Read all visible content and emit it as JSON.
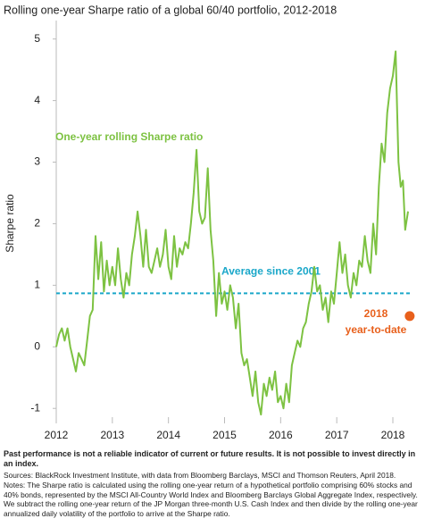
{
  "chart_data": {
    "type": "line",
    "title": "Rolling one-year Sharpe ratio of a global 60/40 portfolio, 2012-2018",
    "y_label": "Sharpe ratio",
    "xlim": [
      2012,
      2018.35
    ],
    "xticks": [
      2012,
      2013,
      2014,
      2015,
      2016,
      2017,
      2018
    ],
    "ylim": [
      -1.2,
      5.3
    ],
    "yticks": [
      -1,
      0,
      1,
      2,
      3,
      4,
      5
    ],
    "x": [
      2012.0,
      2012.05,
      2012.1,
      2012.15,
      2012.2,
      2012.25,
      2012.3,
      2012.35,
      2012.4,
      2012.45,
      2012.5,
      2012.55,
      2012.6,
      2012.65,
      2012.7,
      2012.75,
      2012.8,
      2012.85,
      2012.9,
      2012.95,
      2013.0,
      2013.05,
      2013.1,
      2013.15,
      2013.2,
      2013.25,
      2013.3,
      2013.35,
      2013.4,
      2013.45,
      2013.5,
      2013.55,
      2013.6,
      2013.65,
      2013.7,
      2013.75,
      2013.8,
      2013.85,
      2013.9,
      2013.95,
      2014.0,
      2014.05,
      2014.1,
      2014.15,
      2014.2,
      2014.25,
      2014.3,
      2014.35,
      2014.4,
      2014.45,
      2014.5,
      2014.55,
      2014.6,
      2014.65,
      2014.7,
      2014.75,
      2014.8,
      2014.85,
      2014.9,
      2014.95,
      2015.0,
      2015.05,
      2015.1,
      2015.15,
      2015.2,
      2015.25,
      2015.3,
      2015.35,
      2015.4,
      2015.45,
      2015.5,
      2015.55,
      2015.6,
      2015.65,
      2015.7,
      2015.75,
      2015.8,
      2015.85,
      2015.9,
      2015.95,
      2016.0,
      2016.05,
      2016.1,
      2016.15,
      2016.2,
      2016.25,
      2016.3,
      2016.35,
      2016.4,
      2016.45,
      2016.5,
      2016.55,
      2016.6,
      2016.65,
      2016.7,
      2016.75,
      2016.8,
      2016.85,
      2016.9,
      2016.95,
      2017.0,
      2017.05,
      2017.1,
      2017.15,
      2017.2,
      2017.25,
      2017.3,
      2017.35,
      2017.4,
      2017.45,
      2017.5,
      2017.55,
      2017.6,
      2017.65,
      2017.7,
      2017.75,
      2017.8,
      2017.85,
      2017.9,
      2017.95,
      2018.0,
      2018.05,
      2018.1,
      2018.14,
      2018.18,
      2018.22,
      2018.27
    ],
    "series": [
      {
        "name": "One-year rolling Sharpe ratio",
        "color": "#7dc242",
        "values": [
          0.0,
          0.2,
          0.3,
          0.1,
          0.3,
          0.0,
          -0.2,
          -0.4,
          -0.1,
          -0.2,
          -0.3,
          0.1,
          0.5,
          0.6,
          1.8,
          1.1,
          1.7,
          0.9,
          1.4,
          1.0,
          1.3,
          1.0,
          1.6,
          1.1,
          0.8,
          1.2,
          1.0,
          1.5,
          1.8,
          2.2,
          1.8,
          1.3,
          1.9,
          1.3,
          1.2,
          1.4,
          1.6,
          1.3,
          1.5,
          1.9,
          1.3,
          1.1,
          1.8,
          1.3,
          1.6,
          1.5,
          1.7,
          1.6,
          2.0,
          2.5,
          3.2,
          2.2,
          2.0,
          2.1,
          2.9,
          1.9,
          1.4,
          0.5,
          1.2,
          0.7,
          0.9,
          0.6,
          1.0,
          0.8,
          0.3,
          0.7,
          -0.1,
          -0.3,
          -0.2,
          -0.5,
          -0.8,
          -0.4,
          -0.9,
          -1.1,
          -0.6,
          -0.8,
          -0.5,
          -0.7,
          -0.4,
          -0.9,
          -0.8,
          -1.0,
          -0.6,
          -0.9,
          -0.3,
          -0.1,
          0.1,
          0.0,
          0.3,
          0.4,
          0.7,
          0.9,
          1.3,
          0.9,
          1.0,
          0.6,
          0.8,
          0.4,
          0.9,
          0.7,
          1.2,
          1.7,
          1.2,
          1.5,
          1.0,
          0.8,
          1.2,
          1.0,
          1.4,
          1.3,
          1.8,
          1.4,
          1.2,
          2.0,
          1.5,
          2.6,
          3.3,
          3.0,
          3.8,
          4.2,
          4.4,
          4.8,
          3.0,
          2.6,
          2.7,
          1.9,
          2.2
        ]
      }
    ],
    "average": {
      "name": "Average since 2001",
      "value": 0.87,
      "color": "#1aa7c9"
    },
    "ytd": {
      "label": [
        "2018",
        "year-to-date"
      ],
      "x": 2018.3,
      "value": 0.5,
      "color": "#e8601c"
    },
    "disclaimer": "Past performance is not a reliable indicator of current or future results. It is not possible to invest directly in an index.",
    "sources": "Sources: BlackRock Investment Institute, with data from Bloomberg Barclays, MSCI and Thomson Reuters, April 2018.",
    "notes": "Notes: The Sharpe ratio is calculated using the rolling one-year return of a hypothetical portfolio comprising 60% stocks and 40% bonds, represented by the MSCI All-Country World Index and Bloomberg Barclays Global Aggregate Index, respectively. We subtract the rolling one-year return of the JP Morgan three-month U.S. Cash Index and then divide by the rolling one-year annualized daily volatility of the portfolio to arrive at the Sharpe ratio."
  }
}
